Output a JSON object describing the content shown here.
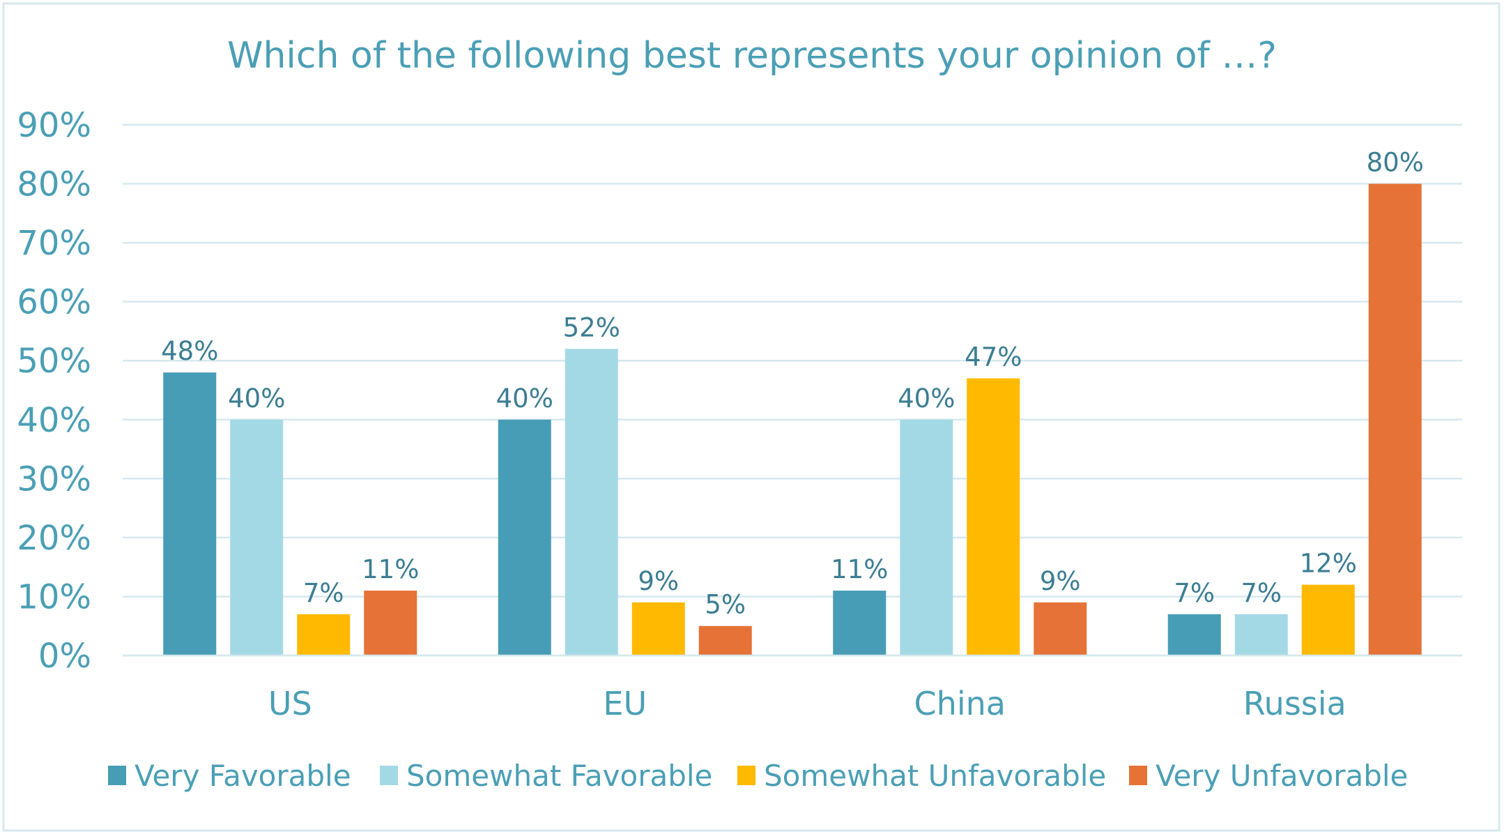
{
  "chart_data": {
    "type": "bar",
    "title": "Which of the following best represents your opinion of …?",
    "xlabel": "",
    "ylabel": "",
    "ylim": [
      0,
      90
    ],
    "yticks": [
      "0%",
      "10%",
      "20%",
      "30%",
      "40%",
      "50%",
      "60%",
      "70%",
      "80%",
      "90%"
    ],
    "grid": true,
    "legend_position": "bottom",
    "categories": [
      "US",
      "EU",
      "China",
      "Russia"
    ],
    "series": [
      {
        "name": "Very Favorable",
        "color": "#479cb6",
        "values": [
          48,
          40,
          11,
          7
        ],
        "labels": [
          "48%",
          "40%",
          "11%",
          "7%"
        ]
      },
      {
        "name": "Somewhat Favorable",
        "color": "#a3d9e5",
        "values": [
          40,
          52,
          40,
          7
        ],
        "labels": [
          "40%",
          "52%",
          "40%",
          "7%"
        ]
      },
      {
        "name": "Somewhat Unfavorable",
        "color": "#ffb900",
        "values": [
          7,
          9,
          47,
          12
        ],
        "labels": [
          "7%",
          "9%",
          "47%",
          "12%"
        ]
      },
      {
        "name": "Very Unfavorable",
        "color": "#e67237",
        "values": [
          11,
          5,
          9,
          80
        ],
        "labels": [
          "11%",
          "5%",
          "9%",
          "80%"
        ]
      }
    ]
  }
}
